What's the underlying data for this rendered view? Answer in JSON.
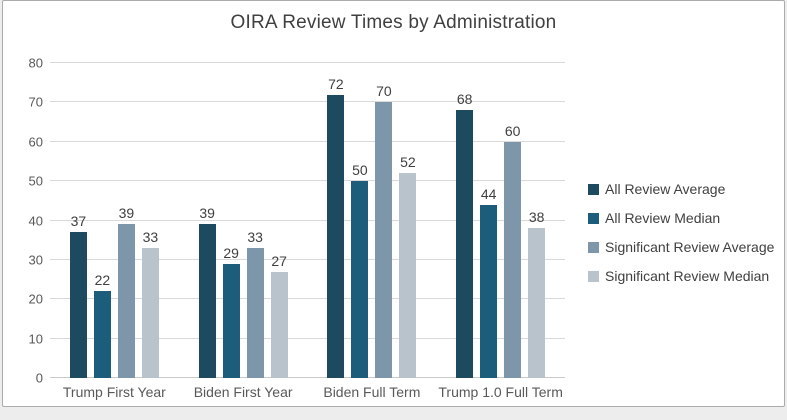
{
  "chart_data": {
    "type": "bar",
    "title": "OIRA Review Times by Administration",
    "categories": [
      "Trump First Year",
      "Biden First Year",
      "Biden Full Term",
      "Trump 1.0 Full Term"
    ],
    "series": [
      {
        "name": "All Review Average",
        "color": "#1e4a60",
        "values": [
          37,
          39,
          72,
          68
        ]
      },
      {
        "name": "All Review Median",
        "color": "#1d5d7c",
        "values": [
          22,
          29,
          50,
          44
        ]
      },
      {
        "name": "Significant Review Average",
        "color": "#7e96aa",
        "values": [
          39,
          33,
          70,
          60
        ]
      },
      {
        "name": "Significant Review Median",
        "color": "#b8c3cb",
        "values": [
          33,
          27,
          52,
          38
        ]
      }
    ],
    "ylim": [
      0,
      80
    ],
    "yticks": [
      0,
      10,
      20,
      30,
      40,
      50,
      60,
      70,
      80
    ],
    "grid": true,
    "data_labels": true,
    "legend_position": "right",
    "colors": {
      "title_text": "#404040",
      "axis_text": "#595959",
      "gridline": "#d9d9d9",
      "frame_border": "#ababab",
      "background": "#ffffff"
    }
  }
}
